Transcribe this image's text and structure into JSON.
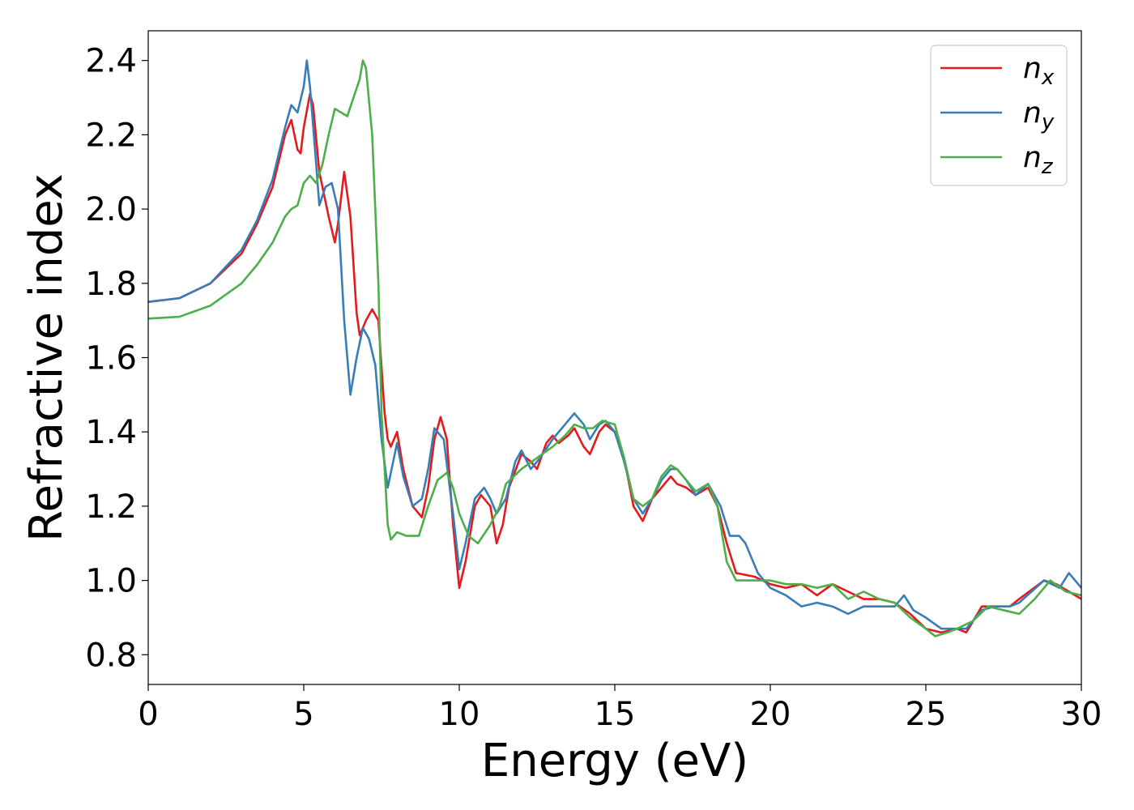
{
  "chart_data": {
    "type": "line",
    "title": "",
    "xlabel": "Energy (eV)",
    "ylabel": "Refractive index",
    "xlim": [
      0,
      30
    ],
    "ylim": [
      0.72,
      2.48
    ],
    "xticks": [
      0,
      5,
      10,
      15,
      20,
      25,
      30
    ],
    "yticks": [
      0.8,
      1.0,
      1.2,
      1.4,
      1.6,
      1.8,
      2.0,
      2.2,
      2.4
    ],
    "grid": false,
    "legend": "top-right",
    "series": [
      {
        "name": "n",
        "subscript": "x",
        "color": "#e41a1c",
        "points": [
          [
            0,
            1.75
          ],
          [
            1,
            1.76
          ],
          [
            2,
            1.8
          ],
          [
            3,
            1.88
          ],
          [
            3.5,
            1.96
          ],
          [
            4,
            2.06
          ],
          [
            4.4,
            2.2
          ],
          [
            4.6,
            2.24
          ],
          [
            4.8,
            2.16
          ],
          [
            4.9,
            2.15
          ],
          [
            5,
            2.22
          ],
          [
            5.2,
            2.31
          ],
          [
            5.3,
            2.28
          ],
          [
            5.5,
            2.1
          ],
          [
            5.8,
            1.98
          ],
          [
            6,
            1.91
          ],
          [
            6.1,
            1.96
          ],
          [
            6.3,
            2.1
          ],
          [
            6.5,
            1.98
          ],
          [
            6.7,
            1.72
          ],
          [
            6.8,
            1.66
          ],
          [
            7,
            1.7
          ],
          [
            7.2,
            1.73
          ],
          [
            7.4,
            1.7
          ],
          [
            7.6,
            1.45
          ],
          [
            7.7,
            1.38
          ],
          [
            7.8,
            1.36
          ],
          [
            8,
            1.4
          ],
          [
            8.2,
            1.3
          ],
          [
            8.5,
            1.2
          ],
          [
            8.8,
            1.17
          ],
          [
            9,
            1.25
          ],
          [
            9.2,
            1.38
          ],
          [
            9.4,
            1.44
          ],
          [
            9.6,
            1.38
          ],
          [
            9.8,
            1.15
          ],
          [
            10,
            0.98
          ],
          [
            10.2,
            1.05
          ],
          [
            10.5,
            1.2
          ],
          [
            10.7,
            1.23
          ],
          [
            11,
            1.2
          ],
          [
            11.2,
            1.1
          ],
          [
            11.4,
            1.15
          ],
          [
            11.6,
            1.25
          ],
          [
            12,
            1.34
          ],
          [
            12.3,
            1.32
          ],
          [
            12.5,
            1.3
          ],
          [
            12.8,
            1.37
          ],
          [
            13,
            1.39
          ],
          [
            13.2,
            1.37
          ],
          [
            13.5,
            1.39
          ],
          [
            13.7,
            1.41
          ],
          [
            14,
            1.36
          ],
          [
            14.2,
            1.34
          ],
          [
            14.5,
            1.4
          ],
          [
            14.7,
            1.42
          ],
          [
            15,
            1.4
          ],
          [
            15.3,
            1.33
          ],
          [
            15.6,
            1.2
          ],
          [
            15.9,
            1.16
          ],
          [
            16.2,
            1.22
          ],
          [
            16.5,
            1.25
          ],
          [
            16.8,
            1.28
          ],
          [
            17,
            1.26
          ],
          [
            17.3,
            1.25
          ],
          [
            17.6,
            1.23
          ],
          [
            18,
            1.25
          ],
          [
            18.3,
            1.2
          ],
          [
            18.6,
            1.1
          ],
          [
            18.9,
            1.02
          ],
          [
            19.5,
            1.01
          ],
          [
            20,
            0.99
          ],
          [
            20.5,
            0.98
          ],
          [
            21,
            0.99
          ],
          [
            21.5,
            0.96
          ],
          [
            22,
            0.99
          ],
          [
            22.5,
            0.97
          ],
          [
            23,
            0.95
          ],
          [
            23.5,
            0.95
          ],
          [
            24,
            0.94
          ],
          [
            24.5,
            0.91
          ],
          [
            25,
            0.87
          ],
          [
            25.5,
            0.86
          ],
          [
            26,
            0.87
          ],
          [
            26.3,
            0.86
          ],
          [
            26.8,
            0.93
          ],
          [
            27.2,
            0.93
          ],
          [
            27.7,
            0.93
          ],
          [
            28,
            0.95
          ],
          [
            28.8,
            1.0
          ],
          [
            29.2,
            0.99
          ],
          [
            29.6,
            0.97
          ],
          [
            30,
            0.95
          ]
        ]
      },
      {
        "name": "n",
        "subscript": "y",
        "color": "#377eb8",
        "points": [
          [
            0,
            1.75
          ],
          [
            1,
            1.76
          ],
          [
            2,
            1.8
          ],
          [
            3,
            1.89
          ],
          [
            3.5,
            1.97
          ],
          [
            4,
            2.08
          ],
          [
            4.4,
            2.22
          ],
          [
            4.6,
            2.28
          ],
          [
            4.8,
            2.26
          ],
          [
            5,
            2.33
          ],
          [
            5.1,
            2.4
          ],
          [
            5.2,
            2.33
          ],
          [
            5.4,
            2.12
          ],
          [
            5.5,
            2.01
          ],
          [
            5.7,
            2.06
          ],
          [
            5.9,
            2.07
          ],
          [
            6.1,
            2.0
          ],
          [
            6.3,
            1.7
          ],
          [
            6.5,
            1.5
          ],
          [
            6.7,
            1.6
          ],
          [
            6.9,
            1.68
          ],
          [
            7.1,
            1.65
          ],
          [
            7.3,
            1.58
          ],
          [
            7.5,
            1.38
          ],
          [
            7.7,
            1.25
          ],
          [
            8,
            1.37
          ],
          [
            8.2,
            1.28
          ],
          [
            8.5,
            1.2
          ],
          [
            8.8,
            1.22
          ],
          [
            9,
            1.3
          ],
          [
            9.2,
            1.41
          ],
          [
            9.5,
            1.38
          ],
          [
            9.8,
            1.18
          ],
          [
            10,
            1.03
          ],
          [
            10.2,
            1.1
          ],
          [
            10.5,
            1.22
          ],
          [
            10.8,
            1.25
          ],
          [
            11,
            1.22
          ],
          [
            11.2,
            1.18
          ],
          [
            11.5,
            1.22
          ],
          [
            11.8,
            1.32
          ],
          [
            12,
            1.35
          ],
          [
            12.3,
            1.3
          ],
          [
            12.6,
            1.33
          ],
          [
            13,
            1.38
          ],
          [
            13.4,
            1.42
          ],
          [
            13.7,
            1.45
          ],
          [
            14,
            1.42
          ],
          [
            14.2,
            1.38
          ],
          [
            14.5,
            1.42
          ],
          [
            14.7,
            1.43
          ],
          [
            15,
            1.4
          ],
          [
            15.3,
            1.32
          ],
          [
            15.6,
            1.22
          ],
          [
            15.9,
            1.18
          ],
          [
            16.2,
            1.22
          ],
          [
            16.5,
            1.27
          ],
          [
            16.8,
            1.3
          ],
          [
            17,
            1.3
          ],
          [
            17.3,
            1.27
          ],
          [
            17.6,
            1.23
          ],
          [
            18,
            1.26
          ],
          [
            18.4,
            1.2
          ],
          [
            18.7,
            1.12
          ],
          [
            19,
            1.12
          ],
          [
            19.2,
            1.1
          ],
          [
            19.6,
            1.02
          ],
          [
            20,
            0.98
          ],
          [
            20.5,
            0.96
          ],
          [
            21,
            0.93
          ],
          [
            21.5,
            0.94
          ],
          [
            22,
            0.93
          ],
          [
            22.5,
            0.91
          ],
          [
            23,
            0.93
          ],
          [
            23.5,
            0.93
          ],
          [
            24,
            0.93
          ],
          [
            24.3,
            0.96
          ],
          [
            24.6,
            0.92
          ],
          [
            25,
            0.9
          ],
          [
            25.5,
            0.87
          ],
          [
            26,
            0.87
          ],
          [
            26.3,
            0.87
          ],
          [
            26.8,
            0.92
          ],
          [
            27.2,
            0.93
          ],
          [
            27.7,
            0.93
          ],
          [
            28,
            0.94
          ],
          [
            28.8,
            1.0
          ],
          [
            29.3,
            0.98
          ],
          [
            29.6,
            1.02
          ],
          [
            30,
            0.98
          ]
        ]
      },
      {
        "name": "n",
        "subscript": "z",
        "color": "#4daf4a",
        "points": [
          [
            0,
            1.705
          ],
          [
            1,
            1.71
          ],
          [
            2,
            1.74
          ],
          [
            3,
            1.8
          ],
          [
            3.5,
            1.85
          ],
          [
            4,
            1.91
          ],
          [
            4.4,
            1.98
          ],
          [
            4.6,
            2.0
          ],
          [
            4.8,
            2.01
          ],
          [
            5,
            2.07
          ],
          [
            5.2,
            2.09
          ],
          [
            5.4,
            2.07
          ],
          [
            5.6,
            2.12
          ],
          [
            5.8,
            2.2
          ],
          [
            6,
            2.27
          ],
          [
            6.2,
            2.26
          ],
          [
            6.4,
            2.25
          ],
          [
            6.6,
            2.3
          ],
          [
            6.8,
            2.35
          ],
          [
            6.9,
            2.4
          ],
          [
            7,
            2.38
          ],
          [
            7.2,
            2.2
          ],
          [
            7.4,
            1.8
          ],
          [
            7.5,
            1.45
          ],
          [
            7.7,
            1.15
          ],
          [
            7.8,
            1.11
          ],
          [
            8,
            1.13
          ],
          [
            8.3,
            1.12
          ],
          [
            8.7,
            1.12
          ],
          [
            9,
            1.2
          ],
          [
            9.3,
            1.27
          ],
          [
            9.6,
            1.29
          ],
          [
            9.8,
            1.25
          ],
          [
            10,
            1.18
          ],
          [
            10.3,
            1.12
          ],
          [
            10.6,
            1.1
          ],
          [
            11,
            1.15
          ],
          [
            11.3,
            1.2
          ],
          [
            11.5,
            1.26
          ],
          [
            12,
            1.3
          ],
          [
            12.5,
            1.33
          ],
          [
            13,
            1.36
          ],
          [
            13.4,
            1.39
          ],
          [
            13.7,
            1.42
          ],
          [
            14,
            1.41
          ],
          [
            14.3,
            1.41
          ],
          [
            14.6,
            1.43
          ],
          [
            15,
            1.42
          ],
          [
            15.3,
            1.33
          ],
          [
            15.6,
            1.22
          ],
          [
            15.9,
            1.2
          ],
          [
            16.2,
            1.22
          ],
          [
            16.5,
            1.28
          ],
          [
            16.8,
            1.31
          ],
          [
            17,
            1.3
          ],
          [
            17.3,
            1.27
          ],
          [
            17.6,
            1.24
          ],
          [
            18,
            1.26
          ],
          [
            18.3,
            1.2
          ],
          [
            18.6,
            1.05
          ],
          [
            18.9,
            1.0
          ],
          [
            19.5,
            1.0
          ],
          [
            20,
            1.0
          ],
          [
            20.5,
            0.99
          ],
          [
            21,
            0.99
          ],
          [
            21.5,
            0.98
          ],
          [
            22,
            0.99
          ],
          [
            22.5,
            0.95
          ],
          [
            23,
            0.97
          ],
          [
            23.5,
            0.95
          ],
          [
            24,
            0.94
          ],
          [
            24.5,
            0.9
          ],
          [
            25,
            0.87
          ],
          [
            25.3,
            0.85
          ],
          [
            25.7,
            0.86
          ],
          [
            26,
            0.87
          ],
          [
            26.5,
            0.89
          ],
          [
            27,
            0.93
          ],
          [
            27.5,
            0.92
          ],
          [
            28,
            0.91
          ],
          [
            28.5,
            0.95
          ],
          [
            29,
            1.0
          ],
          [
            29.5,
            0.97
          ],
          [
            30,
            0.96
          ]
        ]
      }
    ]
  }
}
